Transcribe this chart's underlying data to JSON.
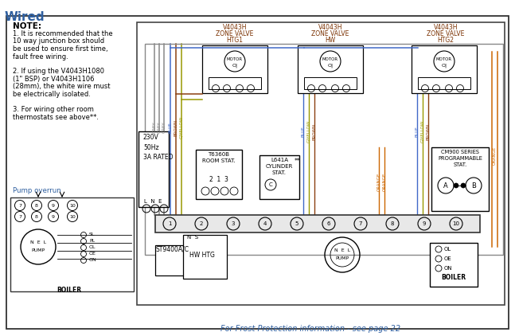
{
  "title": "Wired",
  "bg_color": "#ffffff",
  "note_text": "NOTE:",
  "note_lines": [
    "1. It is recommended that the",
    "10 way junction box should",
    "be used to ensure first time,",
    "fault free wiring.",
    "",
    "2. If using the V4043H1080",
    "(1\" BSP) or V4043H1106",
    "(28mm), the white wire must",
    "be electrically isolated.",
    "",
    "3. For wiring other room",
    "thermostats see above**."
  ],
  "pump_overrun_label": "Pump overrun",
  "frost_text": "For Frost Protection information - see page 22",
  "valve1_label1": "V4043H",
  "valve1_label2": "ZONE VALVE",
  "valve1_label3": "HTG1",
  "valve2_label1": "V4043H",
  "valve2_label2": "ZONE VALVE",
  "valve2_label3": "HW",
  "valve3_label1": "V4043H",
  "valve3_label2": "ZONE VALVE",
  "valve3_label3": "HTG2",
  "power_label": "230V\n50Hz\n3A RATED",
  "lne_label": "L  N  E",
  "tstat1_label1": "T6360B",
  "tstat1_label2": "ROOM STAT.",
  "tstat2_label1": "L641A",
  "tstat2_label2": "CYLINDER",
  "tstat2_label3": "STAT.",
  "prog_label1": "CM900 SERIES",
  "prog_label2": "PROGRAMMABLE",
  "prog_label3": "STAT.",
  "st_label": "ST9400A/C",
  "hw_htg_label": "HW HTG",
  "boiler_label": "BOILER",
  "pump_label": "PUMP",
  "grey": "#888888",
  "blue": "#4169c8",
  "brown": "#8B4010",
  "gyellow": "#999900",
  "orange": "#cc6600",
  "black": "#000000",
  "dark": "#222222",
  "text_blue": "#3060a0",
  "text_brown": "#7a3000"
}
